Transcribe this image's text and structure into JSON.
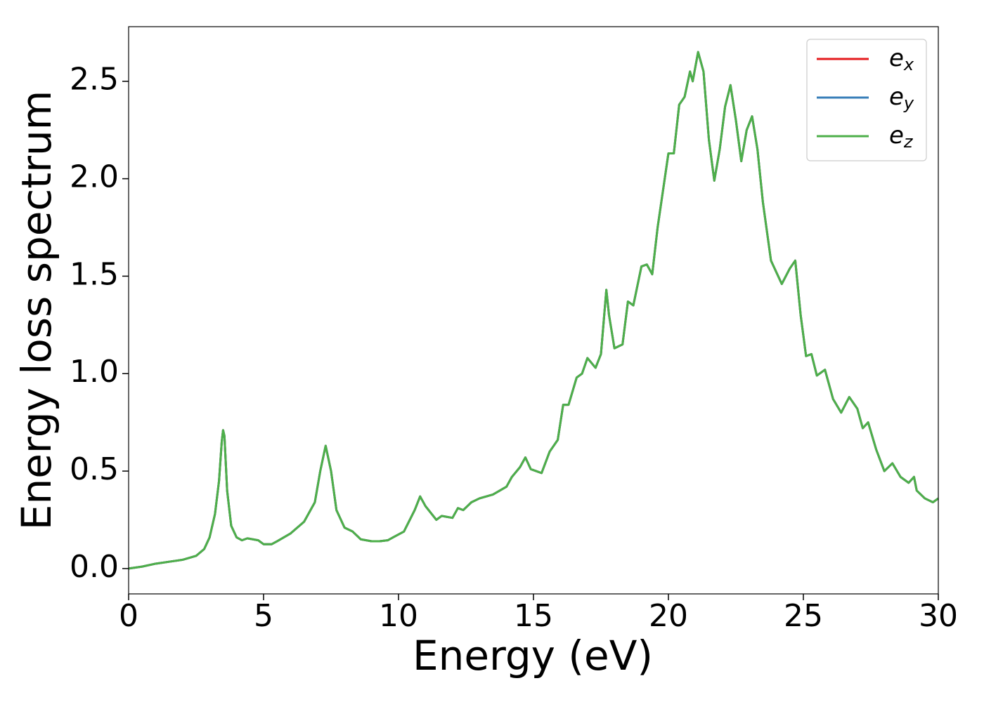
{
  "chart_data": {
    "type": "line",
    "xlabel": "Energy (eV)",
    "ylabel": "Energy loss spectrum",
    "x": [
      0,
      0.5,
      1,
      1.5,
      2,
      2.5,
      2.8,
      3.0,
      3.2,
      3.35,
      3.45,
      3.5,
      3.55,
      3.65,
      3.8,
      4.0,
      4.2,
      4.4,
      4.8,
      5.0,
      5.3,
      5.5,
      6.0,
      6.5,
      6.9,
      7.1,
      7.3,
      7.5,
      7.7,
      8.0,
      8.3,
      8.6,
      9.0,
      9.3,
      9.6,
      9.8,
      10.2,
      10.6,
      10.8,
      11.0,
      11.4,
      11.6,
      12.0,
      12.2,
      12.4,
      12.7,
      13.0,
      13.5,
      14.0,
      14.2,
      14.5,
      14.7,
      14.9,
      15.1,
      15.3,
      15.6,
      15.9,
      16.1,
      16.3,
      16.6,
      16.8,
      17.0,
      17.3,
      17.5,
      17.7,
      17.8,
      18.0,
      18.3,
      18.5,
      18.7,
      19.0,
      19.2,
      19.4,
      19.6,
      20.0,
      20.2,
      20.4,
      20.6,
      20.8,
      20.9,
      21.1,
      21.3,
      21.5,
      21.7,
      21.9,
      22.1,
      22.3,
      22.5,
      22.7,
      22.9,
      23.1,
      23.3,
      23.5,
      23.8,
      24.2,
      24.5,
      24.7,
      24.9,
      25.1,
      25.3,
      25.5,
      25.8,
      26.1,
      26.4,
      26.7,
      27.0,
      27.2,
      27.4,
      27.7,
      28.0,
      28.3,
      28.6,
      28.9,
      29.1,
      29.2,
      29.5,
      29.8,
      30.0
    ],
    "series": [
      {
        "name": "e",
        "subscript": "x",
        "color": "#e41a1c",
        "values": [
          0,
          0.01,
          0.025,
          0.035,
          0.045,
          0.065,
          0.1,
          0.16,
          0.28,
          0.45,
          0.65,
          0.71,
          0.68,
          0.4,
          0.22,
          0.16,
          0.145,
          0.155,
          0.145,
          0.125,
          0.125,
          0.14,
          0.18,
          0.24,
          0.34,
          0.5,
          0.63,
          0.5,
          0.3,
          0.21,
          0.19,
          0.15,
          0.14,
          0.14,
          0.145,
          0.16,
          0.19,
          0.3,
          0.37,
          0.32,
          0.25,
          0.27,
          0.26,
          0.31,
          0.3,
          0.34,
          0.36,
          0.38,
          0.42,
          0.47,
          0.52,
          0.57,
          0.51,
          0.5,
          0.49,
          0.6,
          0.66,
          0.84,
          0.84,
          0.98,
          1.0,
          1.08,
          1.03,
          1.1,
          1.43,
          1.3,
          1.13,
          1.15,
          1.37,
          1.35,
          1.55,
          1.56,
          1.51,
          1.75,
          2.13,
          2.13,
          2.38,
          2.42,
          2.55,
          2.5,
          2.65,
          2.55,
          2.2,
          1.99,
          2.15,
          2.37,
          2.48,
          2.3,
          2.09,
          2.25,
          2.32,
          2.15,
          1.88,
          1.58,
          1.46,
          1.54,
          1.58,
          1.3,
          1.09,
          1.1,
          0.99,
          1.02,
          0.87,
          0.8,
          0.88,
          0.82,
          0.72,
          0.75,
          0.61,
          0.5,
          0.54,
          0.47,
          0.44,
          0.47,
          0.4,
          0.36,
          0.34,
          0.36
        ]
      },
      {
        "name": "e",
        "subscript": "y",
        "color": "#377eb8",
        "values": [
          0,
          0.01,
          0.025,
          0.035,
          0.045,
          0.065,
          0.1,
          0.16,
          0.28,
          0.45,
          0.65,
          0.71,
          0.68,
          0.4,
          0.22,
          0.16,
          0.145,
          0.155,
          0.145,
          0.125,
          0.125,
          0.14,
          0.18,
          0.24,
          0.34,
          0.5,
          0.63,
          0.5,
          0.3,
          0.21,
          0.19,
          0.15,
          0.14,
          0.14,
          0.145,
          0.16,
          0.19,
          0.3,
          0.37,
          0.32,
          0.25,
          0.27,
          0.26,
          0.31,
          0.3,
          0.34,
          0.36,
          0.38,
          0.42,
          0.47,
          0.52,
          0.57,
          0.51,
          0.5,
          0.49,
          0.6,
          0.66,
          0.84,
          0.84,
          0.98,
          1.0,
          1.08,
          1.03,
          1.1,
          1.43,
          1.3,
          1.13,
          1.15,
          1.37,
          1.35,
          1.55,
          1.56,
          1.51,
          1.75,
          2.13,
          2.13,
          2.38,
          2.42,
          2.55,
          2.5,
          2.65,
          2.55,
          2.2,
          1.99,
          2.15,
          2.37,
          2.48,
          2.3,
          2.09,
          2.25,
          2.32,
          2.15,
          1.88,
          1.58,
          1.46,
          1.54,
          1.58,
          1.3,
          1.09,
          1.1,
          0.99,
          1.02,
          0.87,
          0.8,
          0.88,
          0.82,
          0.72,
          0.75,
          0.61,
          0.5,
          0.54,
          0.47,
          0.44,
          0.47,
          0.4,
          0.36,
          0.34,
          0.36
        ]
      },
      {
        "name": "e",
        "subscript": "z",
        "color": "#4daf4a",
        "values": [
          0,
          0.01,
          0.025,
          0.035,
          0.045,
          0.065,
          0.1,
          0.16,
          0.28,
          0.45,
          0.65,
          0.71,
          0.68,
          0.4,
          0.22,
          0.16,
          0.145,
          0.155,
          0.145,
          0.125,
          0.125,
          0.14,
          0.18,
          0.24,
          0.34,
          0.5,
          0.63,
          0.5,
          0.3,
          0.21,
          0.19,
          0.15,
          0.14,
          0.14,
          0.145,
          0.16,
          0.19,
          0.3,
          0.37,
          0.32,
          0.25,
          0.27,
          0.26,
          0.31,
          0.3,
          0.34,
          0.36,
          0.38,
          0.42,
          0.47,
          0.52,
          0.57,
          0.51,
          0.5,
          0.49,
          0.6,
          0.66,
          0.84,
          0.84,
          0.98,
          1.0,
          1.08,
          1.03,
          1.1,
          1.43,
          1.3,
          1.13,
          1.15,
          1.37,
          1.35,
          1.55,
          1.56,
          1.51,
          1.75,
          2.13,
          2.13,
          2.38,
          2.42,
          2.55,
          2.5,
          2.65,
          2.55,
          2.2,
          1.99,
          2.15,
          2.37,
          2.48,
          2.3,
          2.09,
          2.25,
          2.32,
          2.15,
          1.88,
          1.58,
          1.46,
          1.54,
          1.58,
          1.3,
          1.09,
          1.1,
          0.99,
          1.02,
          0.87,
          0.8,
          0.88,
          0.82,
          0.72,
          0.75,
          0.61,
          0.5,
          0.54,
          0.47,
          0.44,
          0.47,
          0.4,
          0.36,
          0.34,
          0.36
        ]
      }
    ],
    "xlim": [
      0,
      30
    ],
    "xticks": [
      0,
      5,
      10,
      15,
      20,
      25,
      30
    ],
    "ylim": [
      -0.13,
      2.78
    ],
    "yticks": [
      {
        "value": 0,
        "label": "0.0"
      },
      0.5,
      {
        "value": 1,
        "label": "1.0"
      },
      1.5,
      {
        "value": 2,
        "label": "2.0"
      },
      2.5
    ],
    "legend": "upper right",
    "grid": false
  }
}
